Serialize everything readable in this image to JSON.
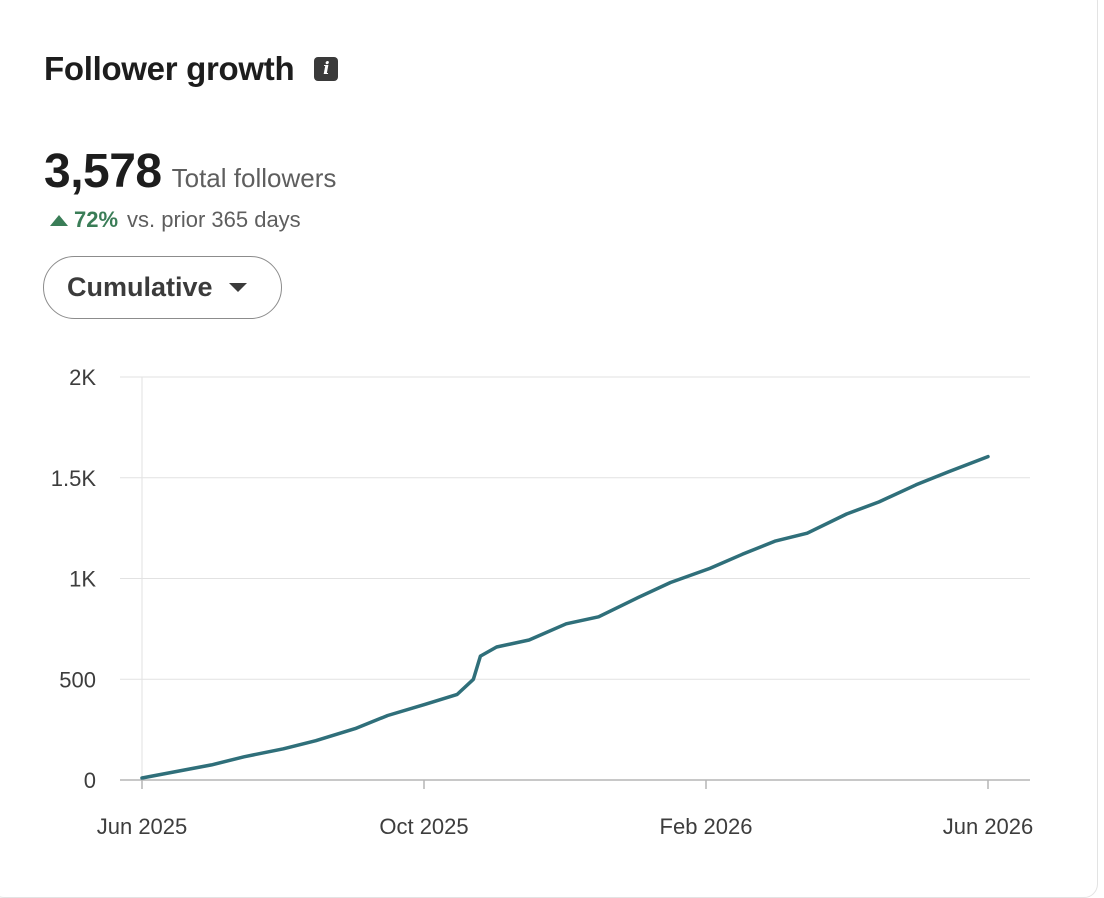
{
  "header": {
    "title": "Follower growth",
    "info_icon": "info-icon"
  },
  "summary": {
    "total": "3,578",
    "total_label": "Total followers",
    "change_pct": "72%",
    "change_label": "vs. prior 365 days",
    "change_color": "#3a7d57"
  },
  "controls": {
    "view_select": "Cumulative"
  },
  "chart_data": {
    "type": "line",
    "title": "",
    "xlabel": "",
    "ylabel": "",
    "ylim": [
      0,
      2000
    ],
    "yticks": [
      {
        "value": 0,
        "label": "0"
      },
      {
        "value": 500,
        "label": "500"
      },
      {
        "value": 1000,
        "label": "1K"
      },
      {
        "value": 1500,
        "label": "1.5K"
      },
      {
        "value": 2000,
        "label": "2K"
      }
    ],
    "xticks": [
      "Jun 2025",
      "Oct 2025",
      "Feb 2026",
      "Jun 2026"
    ],
    "xlim": [
      "2025-06-01",
      "2026-06-01"
    ],
    "grid": true,
    "line_color": "#2f6f7a",
    "series": [
      {
        "x": [
          "2025-06-01",
          "2025-06-15",
          "2025-07-01",
          "2025-07-15",
          "2025-08-01",
          "2025-08-15",
          "2025-09-01",
          "2025-09-15",
          "2025-10-01",
          "2025-10-15",
          "2025-10-22",
          "2025-10-25",
          "2025-11-01",
          "2025-11-15",
          "2025-12-01",
          "2025-12-15",
          "2026-01-01",
          "2026-01-15",
          "2026-02-01",
          "2026-02-15",
          "2026-03-01",
          "2026-03-15",
          "2026-04-01",
          "2026-04-15",
          "2026-05-01",
          "2026-05-15",
          "2026-06-01"
        ],
        "y": [
          10,
          40,
          75,
          115,
          155,
          195,
          255,
          320,
          375,
          425,
          500,
          615,
          660,
          695,
          775,
          810,
          905,
          980,
          1050,
          1120,
          1185,
          1225,
          1320,
          1380,
          1465,
          1530,
          1605
        ]
      }
    ]
  }
}
